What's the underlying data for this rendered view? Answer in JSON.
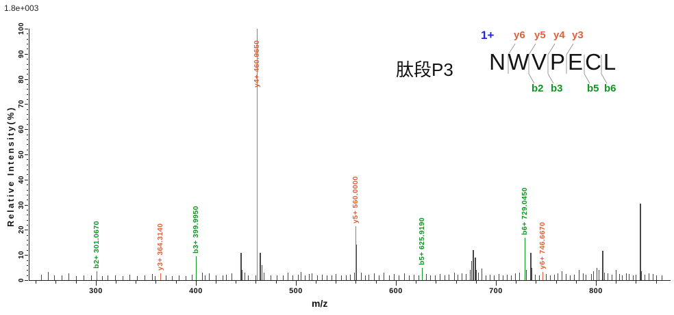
{
  "header": {
    "intensity_scale": "1.8e+003"
  },
  "annotation": {
    "charge": "1+",
    "peptide_name": "肽段P3",
    "sequence": [
      "N",
      "W",
      "V",
      "P",
      "E",
      "C",
      "L"
    ],
    "y_ions": [
      {
        "name": "y6",
        "gap": 1
      },
      {
        "name": "y5",
        "gap": 2
      },
      {
        "name": "y4",
        "gap": 3
      },
      {
        "name": "y3",
        "gap": 4
      }
    ],
    "b_ions": [
      {
        "name": "b2",
        "gap": 2
      },
      {
        "name": "b3",
        "gap": 3
      },
      {
        "name": "b5",
        "gap": 5
      },
      {
        "name": "b6",
        "gap": 6
      }
    ]
  },
  "colors": {
    "y_ion": "#E06038",
    "b_ion": "#0E9520",
    "charge": "#2222E0",
    "noise": "#454545",
    "axis": "#1d1d1d",
    "annotation_line": "#999999"
  },
  "chart_data": {
    "type": "bar",
    "subtype": "ms2-mass-spectrum",
    "title": "肽段P3",
    "xlabel": "m/z",
    "ylabel": "Relative Intensity(%)",
    "xlim": [
      233,
      874
    ],
    "ylim": [
      0,
      100
    ],
    "x_major_ticks": [
      300,
      400,
      500,
      600,
      700,
      800
    ],
    "x_minor_step": 20,
    "y_major_step": 10,
    "y_minor_step": 2,
    "fragments": [
      {
        "ion": "b",
        "name": "b2",
        "label": "b2+ 301.0670",
        "mz": 301.067,
        "intensity": 3.4
      },
      {
        "ion": "y",
        "name": "y3",
        "label": "y3+ 364.3140",
        "mz": 364.314,
        "intensity": 2.8
      },
      {
        "ion": "b",
        "name": "b3",
        "label": "b3+ 399.9950",
        "mz": 399.995,
        "intensity": 9.5
      },
      {
        "ion": "y",
        "name": "y4",
        "label": "y4+ 460.9650",
        "mz": 460.965,
        "intensity": 100
      },
      {
        "ion": "y",
        "name": "y5",
        "label": "y5+ 560.0000",
        "mz": 560.0,
        "intensity": 21.5
      },
      {
        "ion": "b",
        "name": "b5",
        "label": "b5+ 625.9190",
        "mz": 625.919,
        "intensity": 4.8
      },
      {
        "ion": "b",
        "name": "b6",
        "label": "b6+ 729.0450",
        "mz": 729.045,
        "intensity": 16.8
      },
      {
        "ion": "y",
        "name": "y6",
        "label": "y6+ 746.6670",
        "mz": 746.667,
        "intensity": 3.2
      }
    ],
    "noise_peaks": [
      [
        245,
        2.2
      ],
      [
        252,
        3.2
      ],
      [
        258,
        1.8
      ],
      [
        266,
        2
      ],
      [
        273,
        2.6
      ],
      [
        280,
        1.6
      ],
      [
        288,
        2
      ],
      [
        295,
        1.8
      ],
      [
        306,
        1.6
      ],
      [
        312,
        2
      ],
      [
        319,
        1.8
      ],
      [
        327,
        1.5
      ],
      [
        334,
        2.2
      ],
      [
        341,
        1.6
      ],
      [
        349,
        1.8
      ],
      [
        356,
        2.4
      ],
      [
        359,
        1.6
      ],
      [
        370,
        1.8
      ],
      [
        376,
        1.5
      ],
      [
        383,
        2
      ],
      [
        390,
        1.6
      ],
      [
        396,
        2.2
      ],
      [
        406,
        3
      ],
      [
        409,
        2
      ],
      [
        413,
        2.6
      ],
      [
        420,
        2
      ],
      [
        427,
        1.8
      ],
      [
        430,
        2.2
      ],
      [
        436,
        2.6
      ],
      [
        444.5,
        10.9
      ],
      [
        446,
        4
      ],
      [
        449,
        3
      ],
      [
        452,
        2
      ],
      [
        460,
        2
      ],
      [
        463.8,
        10.9
      ],
      [
        465.5,
        6
      ],
      [
        468,
        3
      ],
      [
        475,
        2
      ],
      [
        481,
        1.8
      ],
      [
        487,
        2
      ],
      [
        492,
        3
      ],
      [
        497,
        2
      ],
      [
        502,
        2.2
      ],
      [
        505,
        3.2
      ],
      [
        509,
        2
      ],
      [
        513,
        2.4
      ],
      [
        516,
        2.6
      ],
      [
        521,
        2
      ],
      [
        526,
        2.2
      ],
      [
        531,
        1.8
      ],
      [
        536,
        2
      ],
      [
        540,
        2.5
      ],
      [
        545,
        2
      ],
      [
        550,
        2
      ],
      [
        554,
        2.2
      ],
      [
        558,
        3
      ],
      [
        560,
        14
      ],
      [
        565,
        3
      ],
      [
        569,
        2
      ],
      [
        573,
        2.2
      ],
      [
        578,
        2.6
      ],
      [
        583,
        2
      ],
      [
        588,
        3
      ],
      [
        593,
        2
      ],
      [
        598,
        2.4
      ],
      [
        603,
        2
      ],
      [
        608,
        2.6
      ],
      [
        613,
        2
      ],
      [
        618,
        2.2
      ],
      [
        623,
        2
      ],
      [
        630,
        2.4
      ],
      [
        634,
        2
      ],
      [
        639,
        2
      ],
      [
        644,
        2.4
      ],
      [
        649,
        2
      ],
      [
        653,
        2.2
      ],
      [
        658,
        3
      ],
      [
        662,
        2.2
      ],
      [
        666,
        2.6
      ],
      [
        670,
        2.4
      ],
      [
        674,
        4
      ],
      [
        675.5,
        7.5
      ],
      [
        677,
        12
      ],
      [
        678.5,
        9
      ],
      [
        680,
        4
      ],
      [
        682.5,
        3
      ],
      [
        686,
        4.6
      ],
      [
        690,
        2
      ],
      [
        694,
        2.2
      ],
      [
        698,
        2
      ],
      [
        703,
        2.4
      ],
      [
        707,
        2
      ],
      [
        711,
        2.2
      ],
      [
        715,
        2
      ],
      [
        719,
        2.6
      ],
      [
        723,
        3
      ],
      [
        730.5,
        4
      ],
      [
        734,
        11
      ],
      [
        735.5,
        5
      ],
      [
        739,
        2.2
      ],
      [
        743,
        2
      ],
      [
        750,
        2.4
      ],
      [
        754,
        2
      ],
      [
        758,
        2.2
      ],
      [
        762,
        2.6
      ],
      [
        766,
        3.4
      ],
      [
        770,
        2.4
      ],
      [
        774,
        2
      ],
      [
        778,
        2.2
      ],
      [
        783,
        4
      ],
      [
        787,
        2.6
      ],
      [
        790,
        2.2
      ],
      [
        795,
        2.4
      ],
      [
        797.5,
        3.4
      ],
      [
        801,
        5
      ],
      [
        803,
        4
      ],
      [
        806,
        11.7
      ],
      [
        808,
        3
      ],
      [
        812,
        2.6
      ],
      [
        816,
        2.2
      ],
      [
        820,
        4
      ],
      [
        823,
        2.4
      ],
      [
        826,
        2
      ],
      [
        830,
        2.6
      ],
      [
        833,
        2.4
      ],
      [
        837,
        2
      ],
      [
        840,
        2.2
      ],
      [
        844,
        30.4
      ],
      [
        845.5,
        3.5
      ],
      [
        849,
        2.2
      ],
      [
        853,
        2.6
      ],
      [
        857,
        2.4
      ],
      [
        860,
        2
      ],
      [
        866,
        1.8
      ]
    ],
    "legend": null,
    "grid": false
  }
}
